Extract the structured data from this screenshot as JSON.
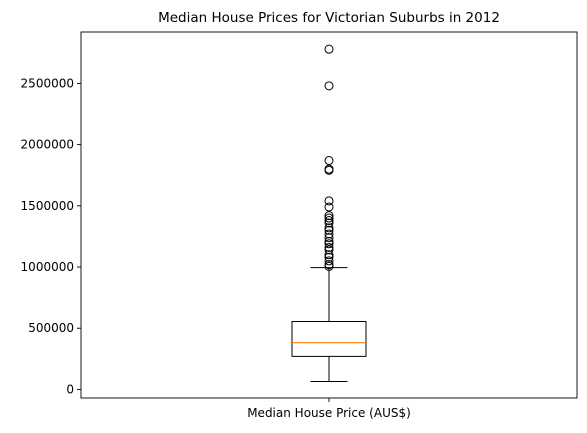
{
  "chart_data": {
    "type": "boxplot",
    "title": "Median House Prices for Victorian Suburbs in 2012",
    "xlabel": "",
    "ylabel": "",
    "categories": [
      "Median House Price (AUS$)"
    ],
    "ylim": [
      -70000,
      2920000
    ],
    "yticks": [
      0,
      500000,
      1000000,
      1500000,
      2000000,
      2500000
    ],
    "ytick_labels": [
      "0",
      "500000",
      "1000000",
      "1500000",
      "2000000",
      "2500000"
    ],
    "grid": false,
    "legend": "none",
    "box": {
      "whisker_low": 65000,
      "q1": 270000,
      "median": 382000,
      "q3": 555000,
      "whisker_high": 995000
    },
    "outliers": [
      1005000,
      1020000,
      1050000,
      1080000,
      1100000,
      1140000,
      1160000,
      1190000,
      1210000,
      1240000,
      1270000,
      1300000,
      1320000,
      1360000,
      1380000,
      1400000,
      1420000,
      1490000,
      1540000,
      1790000,
      1800000,
      1870000,
      2480000,
      2780000
    ],
    "colors": {
      "box": "#000000",
      "median": "#ff7f0e",
      "outlier_edge": "#000000"
    }
  }
}
